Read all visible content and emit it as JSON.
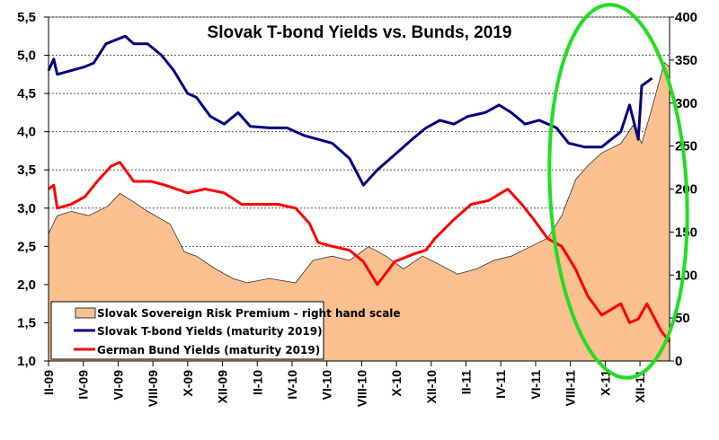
{
  "chart_data": {
    "type": "line",
    "title": "Slovak T-bond Yields vs. Bunds, 2019",
    "x_unit": "months since Jan 2009 (Feb 2009 = 1)",
    "xlim": [
      1,
      36.7
    ],
    "ylim_left": [
      1.0,
      5.5
    ],
    "ylim_right": [
      0,
      400
    ],
    "y_ticks_left": [
      "1,0",
      "1,5",
      "2,0",
      "2,5",
      "3,0",
      "3,5",
      "4,0",
      "4,5",
      "5,0",
      "5,5"
    ],
    "y_ticks_right": [
      "0",
      "50",
      "100",
      "150",
      "200",
      "250",
      "300",
      "350",
      "400"
    ],
    "x_ticks": [
      {
        "m": 1,
        "label": "II-09"
      },
      {
        "m": 3,
        "label": "IV-09"
      },
      {
        "m": 5,
        "label": "VI-09"
      },
      {
        "m": 7,
        "label": "VIII-09"
      },
      {
        "m": 9,
        "label": "X-09"
      },
      {
        "m": 11,
        "label": "XII-09"
      },
      {
        "m": 13,
        "label": "II-10"
      },
      {
        "m": 15,
        "label": "IV-10"
      },
      {
        "m": 17,
        "label": "VI-10"
      },
      {
        "m": 19,
        "label": "VIII-10"
      },
      {
        "m": 21,
        "label": "X-10"
      },
      {
        "m": 23,
        "label": "XII-10"
      },
      {
        "m": 25,
        "label": "II-11"
      },
      {
        "m": 27,
        "label": "IV-11"
      },
      {
        "m": 29,
        "label": "VI-11"
      },
      {
        "m": 31,
        "label": "VIII-11"
      },
      {
        "m": 33,
        "label": "X-11"
      },
      {
        "m": 35,
        "label": "XII-11"
      }
    ],
    "grid": "horizontal dashed",
    "legend_position": "bottom-left",
    "series": [
      {
        "name": "Slovak Sovereign Risk Premium - right hand scale",
        "type": "area",
        "axis": "right",
        "color": "#FAC090",
        "x": [
          1.0,
          1.5,
          2.3,
          3.3,
          4.4,
          5.1,
          5.9,
          6.7,
          8.0,
          8.8,
          9.5,
          10.6,
          11.6,
          12.4,
          13.7,
          15.2,
          16.2,
          17.3,
          18.3,
          19.4,
          20.4,
          21.4,
          22.5,
          23.5,
          24.5,
          25.6,
          26.6,
          27.6,
          28.7,
          29.7,
          30.5,
          31.3,
          32.0,
          32.8,
          33.9,
          34.6,
          35.1,
          35.7,
          36.4,
          36.7
        ],
        "values": [
          148,
          169,
          174,
          169,
          180,
          195,
          185,
          174,
          159,
          127,
          122,
          107,
          96,
          91,
          96,
          91,
          117,
          122,
          117,
          133,
          122,
          107,
          122,
          112,
          101,
          107,
          117,
          122,
          133,
          143,
          169,
          211,
          227,
          242,
          253,
          274,
          253,
          295,
          347,
          342
        ]
      },
      {
        "name": "Slovak T-bond Yields (maturity 2019)",
        "type": "line",
        "axis": "left",
        "color": "#00007F",
        "x": [
          1.0,
          1.3,
          1.5,
          2.3,
          3.1,
          3.6,
          4.3,
          5.4,
          5.9,
          6.7,
          7.5,
          8.2,
          9.0,
          9.5,
          10.3,
          11.1,
          11.9,
          12.6,
          13.7,
          14.7,
          15.7,
          16.5,
          17.3,
          18.3,
          19.1,
          19.9,
          20.9,
          21.9,
          22.7,
          23.5,
          24.3,
          25.1,
          26.1,
          26.9,
          27.6,
          28.4,
          29.2,
          30.2,
          30.9,
          31.8,
          32.8,
          33.9,
          34.4,
          34.9,
          35.1,
          35.7
        ],
        "values": [
          4.8,
          4.95,
          4.75,
          4.8,
          4.85,
          4.9,
          5.15,
          5.25,
          5.15,
          5.15,
          5.0,
          4.8,
          4.5,
          4.45,
          4.2,
          4.1,
          4.25,
          4.07,
          4.05,
          4.05,
          3.95,
          3.9,
          3.85,
          3.65,
          3.3,
          3.5,
          3.7,
          3.9,
          4.05,
          4.15,
          4.1,
          4.2,
          4.25,
          4.35,
          4.25,
          4.1,
          4.15,
          4.05,
          3.85,
          3.8,
          3.8,
          4.0,
          4.35,
          3.9,
          4.6,
          4.7
        ]
      },
      {
        "name": "German Bund Yields (maturity 2019)",
        "type": "line",
        "axis": "left",
        "color": "#FF0000",
        "x": [
          1.0,
          1.3,
          1.5,
          2.3,
          3.1,
          3.8,
          4.6,
          5.1,
          5.9,
          6.9,
          7.7,
          9.0,
          10.0,
          11.1,
          12.1,
          13.2,
          14.2,
          15.2,
          16.0,
          16.5,
          17.3,
          18.3,
          19.1,
          19.9,
          20.9,
          22.0,
          22.7,
          23.2,
          24.3,
          25.3,
          26.3,
          27.4,
          28.2,
          28.9,
          29.7,
          30.5,
          31.3,
          32.0,
          32.8,
          33.9,
          34.4,
          34.9,
          35.4,
          36.2,
          36.7
        ],
        "values": [
          3.25,
          3.3,
          3.0,
          3.05,
          3.15,
          3.35,
          3.55,
          3.6,
          3.35,
          3.35,
          3.3,
          3.2,
          3.25,
          3.2,
          3.05,
          3.05,
          3.05,
          3.0,
          2.8,
          2.55,
          2.5,
          2.45,
          2.3,
          2.0,
          2.3,
          2.4,
          2.45,
          2.6,
          2.85,
          3.05,
          3.1,
          3.25,
          3.05,
          2.85,
          2.6,
          2.5,
          2.2,
          1.85,
          1.6,
          1.75,
          1.5,
          1.55,
          1.75,
          1.4,
          1.25
        ]
      }
    ],
    "annotation": "green ellipse highlighting late 2011"
  }
}
